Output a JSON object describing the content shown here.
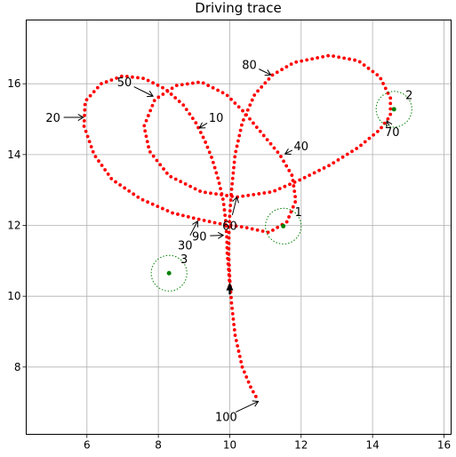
{
  "chart_data": {
    "type": "scatter",
    "title": "Driving trace",
    "xlabel": "",
    "ylabel": "",
    "xlim": [
      4.3,
      16.2
    ],
    "ylim": [
      6.1,
      17.8
    ],
    "xticks": [
      6,
      8,
      10,
      12,
      14,
      16
    ],
    "yticks": [
      8,
      10,
      12,
      14,
      16
    ],
    "grid": true,
    "colors": {
      "trace": "#ff0000",
      "landmark": "#008000",
      "car": "#000000",
      "grid": "#b0b0b0"
    },
    "waypoints": [
      [
        10.0,
        10.3
      ],
      [
        9.97,
        10.75
      ],
      [
        9.93,
        11.2
      ],
      [
        9.92,
        11.65
      ],
      [
        9.89,
        12.1
      ],
      [
        9.82,
        12.7
      ],
      [
        9.68,
        13.3
      ],
      [
        9.5,
        13.9
      ],
      [
        9.3,
        14.4
      ],
      [
        9.05,
        14.9
      ],
      [
        8.7,
        15.4
      ],
      [
        8.2,
        15.85
      ],
      [
        7.6,
        16.15
      ],
      [
        7.0,
        16.22
      ],
      [
        6.4,
        16.0
      ],
      [
        5.95,
        15.5
      ],
      [
        5.92,
        14.8
      ],
      [
        6.2,
        14.0
      ],
      [
        6.7,
        13.3
      ],
      [
        7.5,
        12.75
      ],
      [
        8.4,
        12.35
      ],
      [
        9.1,
        12.18
      ],
      [
        9.7,
        12.05
      ],
      [
        10.4,
        11.95
      ],
      [
        11.1,
        11.8
      ],
      [
        11.6,
        12.1
      ],
      [
        11.85,
        12.7
      ],
      [
        11.75,
        13.4
      ],
      [
        11.4,
        14.0
      ],
      [
        10.9,
        14.6
      ],
      [
        10.4,
        15.2
      ],
      [
        9.9,
        15.7
      ],
      [
        9.2,
        16.05
      ],
      [
        8.5,
        15.95
      ],
      [
        7.9,
        15.55
      ],
      [
        7.6,
        14.8
      ],
      [
        7.75,
        14.1
      ],
      [
        8.3,
        13.4
      ],
      [
        9.2,
        12.95
      ],
      [
        10.2,
        12.8
      ],
      [
        11.2,
        12.95
      ],
      [
        12.0,
        13.3
      ],
      [
        12.8,
        13.7
      ],
      [
        13.6,
        14.2
      ],
      [
        14.2,
        14.7
      ],
      [
        14.5,
        15.1
      ],
      [
        14.5,
        15.6
      ],
      [
        14.2,
        16.2
      ],
      [
        13.6,
        16.65
      ],
      [
        12.8,
        16.8
      ],
      [
        11.8,
        16.6
      ],
      [
        11.2,
        16.25
      ],
      [
        10.7,
        15.7
      ],
      [
        10.35,
        14.9
      ],
      [
        10.15,
        14.0
      ],
      [
        10.05,
        13.0
      ],
      [
        10.0,
        12.3
      ],
      [
        9.98,
        11.8
      ],
      [
        9.97,
        11.2
      ],
      [
        10.0,
        10.5
      ],
      [
        10.05,
        9.8
      ],
      [
        10.15,
        8.9
      ],
      [
        10.35,
        8.0
      ],
      [
        10.6,
        7.4
      ],
      [
        10.8,
        7.05
      ]
    ],
    "annotations": [
      {
        "text": "10",
        "point": [
          9.15,
          14.75
        ],
        "label": [
          9.62,
          15.05
        ]
      },
      {
        "text": "20",
        "point": [
          5.9,
          15.05
        ],
        "label": [
          5.05,
          15.05
        ]
      },
      {
        "text": "30",
        "point": [
          9.1,
          12.12
        ],
        "label": [
          8.75,
          11.45
        ]
      },
      {
        "text": "40",
        "point": [
          11.55,
          14.02
        ],
        "label": [
          12.0,
          14.25
        ]
      },
      {
        "text": "50",
        "point": [
          7.85,
          15.65
        ],
        "label": [
          7.05,
          16.05
        ]
      },
      {
        "text": "60",
        "point": [
          10.2,
          12.8
        ],
        "label": [
          10.0,
          12.0
        ]
      },
      {
        "text": "70",
        "point": [
          14.4,
          14.95
        ],
        "label": [
          14.55,
          14.65
        ]
      },
      {
        "text": "80",
        "point": [
          11.15,
          16.25
        ],
        "label": [
          10.55,
          16.55
        ]
      },
      {
        "text": "90",
        "point": [
          9.82,
          11.72
        ],
        "label": [
          9.15,
          11.7
        ]
      },
      {
        "text": "100",
        "point": [
          10.8,
          7.03
        ],
        "label": [
          9.9,
          6.6
        ]
      }
    ],
    "landmarks": [
      {
        "id": "1",
        "center": [
          11.5,
          11.98
        ],
        "radius": 0.5
      },
      {
        "id": "2",
        "center": [
          14.6,
          15.28
        ],
        "radius": 0.5
      },
      {
        "id": "3",
        "center": [
          8.3,
          10.65
        ],
        "radius": 0.5
      }
    ],
    "car": {
      "position": [
        10.0,
        10.3
      ],
      "heading_deg": 90
    }
  }
}
